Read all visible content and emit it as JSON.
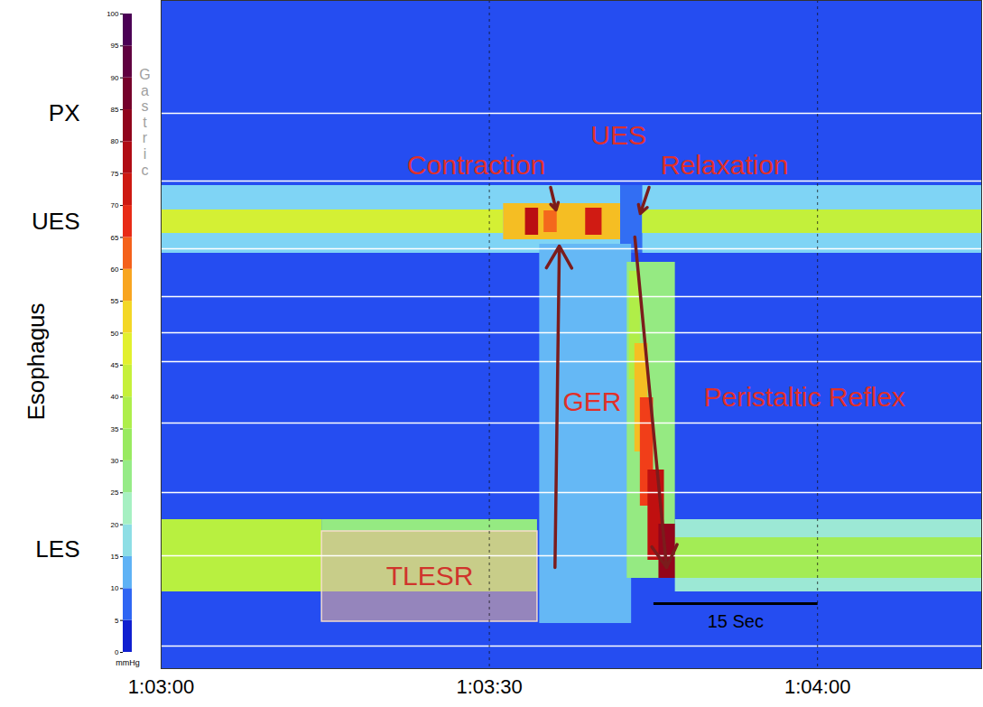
{
  "chart_data": {
    "type": "heatmap",
    "xlim": [
      3780,
      3855
    ],
    "xticks": [
      {
        "value": 3780,
        "label": "1:03:00"
      },
      {
        "value": 3810,
        "label": "1:03:30"
      },
      {
        "value": 3840,
        "label": "1:04:00"
      }
    ],
    "ylim": [
      0,
      74
    ],
    "yticks": [
      {
        "value": 61.5,
        "label": "PX"
      },
      {
        "value": 49.5,
        "label": "UES"
      },
      {
        "value": 34,
        "label": "Esophagus"
      },
      {
        "value": 13.2,
        "label": "LES"
      }
    ],
    "grid": true,
    "color_bar": {
      "range": [
        0,
        100
      ],
      "ticks": [
        0,
        5,
        10,
        15,
        20,
        25,
        30,
        35,
        40,
        45,
        50,
        55,
        60,
        65,
        70,
        75,
        80,
        85,
        90,
        95,
        100
      ],
      "label": "mmHg",
      "title": "Gastric"
    },
    "cells": [
      {
        "x1": 3780,
        "x2": 3855,
        "y1": 0,
        "y2": 74,
        "value": 6
      },
      {
        "x1": 3780,
        "x2": 3822,
        "y1": 46,
        "y2": 53.5,
        "value": 15
      },
      {
        "x1": 3824,
        "x2": 3855,
        "y1": 46,
        "y2": 53.5,
        "value": 15
      },
      {
        "x1": 3780,
        "x2": 3811.3,
        "y1": 48.2,
        "y2": 50.8,
        "value": 45
      },
      {
        "x1": 3811.3,
        "x2": 3822,
        "y1": 47.5,
        "y2": 51.5,
        "value": 55
      },
      {
        "x1": 3813.3,
        "x2": 3814.5,
        "y1": 48,
        "y2": 51,
        "value": 76
      },
      {
        "x1": 3815,
        "x2": 3816.2,
        "y1": 48.3,
        "y2": 50.7,
        "value": 62
      },
      {
        "x1": 3818.8,
        "x2": 3820.3,
        "y1": 48,
        "y2": 51,
        "value": 72
      },
      {
        "x1": 3822,
        "x2": 3824,
        "y1": 46,
        "y2": 53.5,
        "value": 8
      },
      {
        "x1": 3824,
        "x2": 3855,
        "y1": 48.2,
        "y2": 50.8,
        "value": 42
      },
      {
        "x1": 3780,
        "x2": 3794.7,
        "y1": 8.5,
        "y2": 16.5,
        "value": 40
      },
      {
        "x1": 3794.7,
        "x2": 3814.4,
        "y1": 8.5,
        "y2": 16.5,
        "value": 28
      },
      {
        "x1": 3814.6,
        "x2": 3823,
        "y1": 5,
        "y2": 47,
        "value": 13
      },
      {
        "x1": 3827,
        "x2": 3855,
        "y1": 8.5,
        "y2": 16.5,
        "value": 20
      },
      {
        "x1": 3827,
        "x2": 3855,
        "y1": 10,
        "y2": 14.5,
        "value": 35
      },
      {
        "x1": 3822.6,
        "x2": 3827,
        "y1": 10,
        "y2": 45,
        "value": 28
      },
      {
        "x1": 3822.8,
        "x2": 3823.8,
        "y1": 32,
        "y2": 44,
        "value": 38
      },
      {
        "x1": 3823.3,
        "x2": 3824.5,
        "y1": 24,
        "y2": 36,
        "value": 55
      },
      {
        "x1": 3823.8,
        "x2": 3825,
        "y1": 18,
        "y2": 30,
        "value": 65
      },
      {
        "x1": 3824.5,
        "x2": 3826,
        "y1": 12,
        "y2": 22,
        "value": 75
      },
      {
        "x1": 3825.5,
        "x2": 3827,
        "y1": 10,
        "y2": 16,
        "value": 82
      }
    ],
    "sensors": [
      61.5,
      54,
      46.5,
      41.2,
      37.2,
      34,
      27.2,
      19.5,
      12.5,
      2.5
    ],
    "annotations": [
      {
        "text": "Contraction",
        "x": 3808.8,
        "y": 55.7,
        "color": "#e0302a"
      },
      {
        "text": "UES",
        "x": 3821.8,
        "y": 59,
        "color": "#e0302a"
      },
      {
        "text": "Relaxation",
        "x": 3831.5,
        "y": 55.7,
        "color": "#e0302a"
      },
      {
        "text": "GER",
        "x": 3819.4,
        "y": 29.5,
        "color": "#e0302a"
      },
      {
        "text": "Peristaltic Reflex",
        "x": 3838.8,
        "y": 30,
        "color": "#e0302a"
      }
    ],
    "arrows": [
      {
        "x1": 3815.6,
        "y1": 53.3,
        "x2": 3816.1,
        "y2": 50.8,
        "color": "#7b1c1c"
      },
      {
        "x1": 3824.6,
        "y1": 53.3,
        "x2": 3823.8,
        "y2": 50.4,
        "color": "#7b1c1c"
      },
      {
        "x1": 3816.0,
        "y1": 11.2,
        "x2": 3816.4,
        "y2": 46.8,
        "color": "#7b1c1c"
      },
      {
        "x1": 3823.3,
        "y1": 47.8,
        "x2": 3826.2,
        "y2": 11.2,
        "color": "#7b1c1c"
      }
    ],
    "tlesr_box": {
      "x1": 3794.7,
      "x2": 3814.4,
      "y1": 5.2,
      "y2": 15.2,
      "label": "TLESR",
      "color": "#d0342c"
    },
    "scale_bar": {
      "x1": 3825,
      "x2": 3840,
      "y": 7.2,
      "label": "15 Sec"
    }
  }
}
